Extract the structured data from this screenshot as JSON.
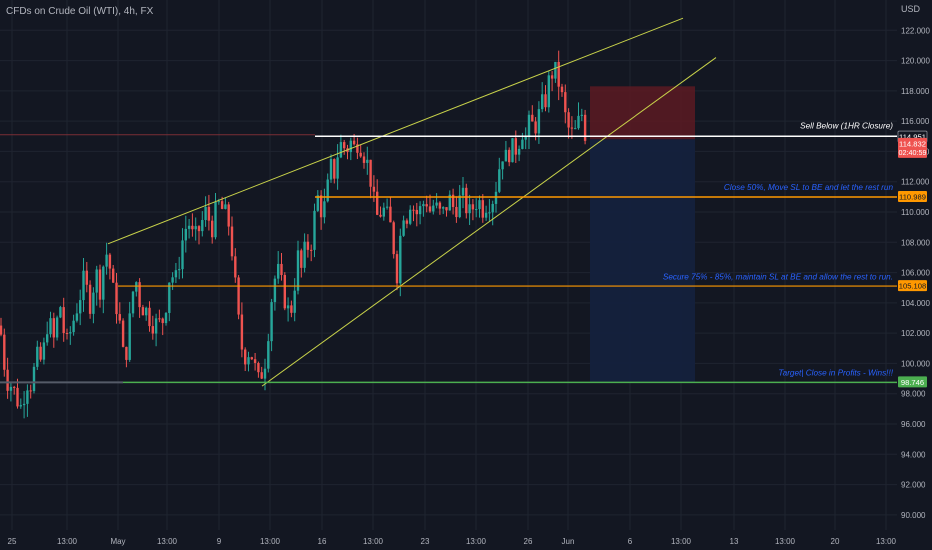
{
  "header": {
    "title": "CFDs on Crude Oil (WTI), 4h, FX",
    "currency": "USD"
  },
  "colors": {
    "background": "#131722",
    "grid": "#1f2430",
    "up_candle": "#26a69a",
    "down_candle": "#ef5350",
    "axis_text": "#b2b5be",
    "trendline": "#c8d24a",
    "sell_line": "#ffffff",
    "target_line": "#4caf50",
    "close_line": "#ff9800",
    "annotation_text": "#2962ff",
    "stop_zone": "#5c1a22",
    "profit_zone": "#14213d"
  },
  "chart_data": {
    "type": "candlestick",
    "instrument": "CFDs on Crude Oil (WTI)",
    "timeframe": "4h",
    "ylim": [
      89,
      124
    ],
    "y_ticks": [
      90,
      92,
      94,
      96,
      98,
      100,
      102,
      104,
      106,
      108,
      110,
      112,
      114,
      116,
      118,
      120,
      122
    ],
    "x_ticks": [
      "25",
      "13:00",
      "May",
      "13:00",
      "9",
      "13:00",
      "16",
      "13:00",
      "23",
      "13:00",
      "26",
      "Jun",
      "6",
      "13:00",
      "13",
      "13:00",
      "20",
      "13:00"
    ],
    "levels": [
      {
        "name": "current-price",
        "value": "114.951",
        "color": "#ffffff",
        "bg": "#131722"
      },
      {
        "name": "countdown",
        "value": "114.832",
        "sub": "02:40:59",
        "color": "#ffffff",
        "bg": "#ef5350"
      },
      {
        "name": "close-50",
        "value": "110.989",
        "color": "#131722",
        "bg": "#ff9800"
      },
      {
        "name": "secure-75",
        "value": "105.108",
        "color": "#131722",
        "bg": "#ff9800"
      },
      {
        "name": "target",
        "value": "98.746",
        "color": "#ffffff",
        "bg": "#4caf50"
      }
    ],
    "annotations": [
      {
        "name": "sell-below-label",
        "text": "Sell Below (1HR Closure)"
      },
      {
        "name": "close-50-label",
        "text": "Close 50%, Move SL to BE and let the rest run"
      },
      {
        "name": "secure-75-label",
        "text": "Secure 75% - 85%, maintain SL at BE and allow the rest to run."
      },
      {
        "name": "target-label",
        "text": "Target| Close in Profits - Wins!!!"
      }
    ],
    "close_path": [
      [
        0,
        102.5
      ],
      [
        6,
        99
      ],
      [
        12,
        98.5
      ],
      [
        18,
        97.5
      ],
      [
        22,
        97
      ],
      [
        26,
        99
      ],
      [
        30,
        98.5
      ],
      [
        34,
        99.5
      ],
      [
        38,
        100.5
      ],
      [
        42,
        100
      ],
      [
        48,
        103
      ],
      [
        54,
        101.5
      ],
      [
        60,
        104
      ],
      [
        66,
        101
      ],
      [
        72,
        102.5
      ],
      [
        78,
        104
      ],
      [
        84,
        105.5
      ],
      [
        90,
        104
      ],
      [
        96,
        106
      ],
      [
        100,
        105
      ],
      [
        104,
        106.8
      ],
      [
        108,
        107.5
      ],
      [
        112,
        105
      ],
      [
        116,
        104
      ],
      [
        120,
        102.5
      ],
      [
        124,
        100
      ],
      [
        128,
        101.5
      ],
      [
        132,
        104.5
      ],
      [
        136,
        105.5
      ],
      [
        140,
        104
      ],
      [
        146,
        103.5
      ],
      [
        152,
        102.8
      ],
      [
        158,
        102.5
      ],
      [
        164,
        103
      ],
      [
        170,
        106
      ],
      [
        176,
        105.5
      ],
      [
        182,
        108
      ],
      [
        188,
        109.5
      ],
      [
        194,
        108
      ],
      [
        200,
        109
      ],
      [
        206,
        110
      ],
      [
        212,
        109
      ],
      [
        218,
        110.5
      ],
      [
        224,
        110
      ],
      [
        230,
        109
      ],
      [
        234,
        106
      ],
      [
        238,
        103
      ],
      [
        242,
        101
      ],
      [
        246,
        100.5
      ],
      [
        250,
        101
      ],
      [
        254,
        100
      ],
      [
        258,
        98.7
      ],
      [
        262,
        99.5
      ],
      [
        266,
        100.5
      ],
      [
        270,
        103.5
      ],
      [
        274,
        105.5
      ],
      [
        278,
        106
      ],
      [
        282,
        105
      ],
      [
        286,
        104
      ],
      [
        290,
        103
      ],
      [
        294,
        105
      ],
      [
        298,
        107
      ],
      [
        302,
        106
      ],
      [
        306,
        108
      ],
      [
        310,
        107.5
      ],
      [
        314,
        109.5
      ],
      [
        318,
        111
      ],
      [
        322,
        110
      ],
      [
        326,
        110.5
      ],
      [
        330,
        113
      ],
      [
        334,
        112.5
      ],
      [
        338,
        114
      ],
      [
        342,
        114.6
      ],
      [
        346,
        114
      ],
      [
        350,
        114.7
      ],
      [
        354,
        114.2
      ],
      [
        358,
        114.8
      ],
      [
        362,
        114.3
      ],
      [
        366,
        113.5
      ],
      [
        370,
        112.5
      ],
      [
        374,
        110.5
      ],
      [
        378,
        109.5
      ],
      [
        382,
        110.3
      ],
      [
        386,
        109.8
      ],
      [
        390,
        109.2
      ],
      [
        394,
        107.5
      ],
      [
        398,
        105.5
      ],
      [
        402,
        110.5
      ],
      [
        406,
        109.5
      ],
      [
        410,
        110.8
      ],
      [
        414,
        110.2
      ],
      [
        418,
        109.8
      ],
      [
        422,
        110.4
      ],
      [
        426,
        110.9
      ],
      [
        430,
        110.1
      ],
      [
        434,
        110.5
      ],
      [
        438,
        110
      ],
      [
        442,
        109.7
      ],
      [
        446,
        110.4
      ],
      [
        450,
        110.8
      ],
      [
        454,
        110.2
      ],
      [
        458,
        110.6
      ],
      [
        462,
        111
      ],
      [
        466,
        110.4
      ],
      [
        470,
        109.8
      ],
      [
        474,
        110.5
      ],
      [
        478,
        110.9
      ],
      [
        482,
        110.2
      ],
      [
        486,
        110.6
      ],
      [
        490,
        110.8
      ],
      [
        494,
        111
      ],
      [
        498,
        112.5
      ],
      [
        502,
        114
      ],
      [
        506,
        113.5
      ],
      [
        510,
        114.2
      ],
      [
        514,
        114
      ],
      [
        518,
        114.5
      ],
      [
        522,
        115.5
      ],
      [
        526,
        114.8
      ],
      [
        530,
        116
      ],
      [
        534,
        115.5
      ],
      [
        538,
        116.2
      ],
      [
        542,
        117
      ],
      [
        546,
        117.5
      ],
      [
        550,
        119
      ],
      [
        554,
        119.4
      ],
      [
        558,
        118.8
      ],
      [
        562,
        117.5
      ],
      [
        566,
        116
      ],
      [
        570,
        115.2
      ],
      [
        574,
        115
      ],
      [
        578,
        115.8
      ],
      [
        582,
        116.5
      ],
      [
        586,
        114.9
      ]
    ],
    "trendlines": [
      {
        "name": "upper-wedge-line",
        "from": [
          108,
          107.9
        ],
        "to": [
          683,
          122.8
        ]
      },
      {
        "name": "lower-wedge-line",
        "from": [
          262,
          98.5
        ],
        "to": [
          716,
          120.2
        ]
      },
      {
        "name": "sell-below-line",
        "from": [
          315,
          115
        ],
        "to": [
          897,
          115
        ]
      },
      {
        "name": "close-50-line",
        "from": [
          315,
          110.99
        ],
        "to": [
          897,
          110.99
        ]
      },
      {
        "name": "secure-75-line",
        "from": [
          118,
          105.11
        ],
        "to": [
          897,
          105.11
        ]
      },
      {
        "name": "target-line",
        "from": [
          123,
          98.75
        ],
        "to": [
          897,
          98.75
        ]
      }
    ],
    "position": {
      "entry": 114.8,
      "stop": 118.3,
      "target": 98.75
    }
  }
}
